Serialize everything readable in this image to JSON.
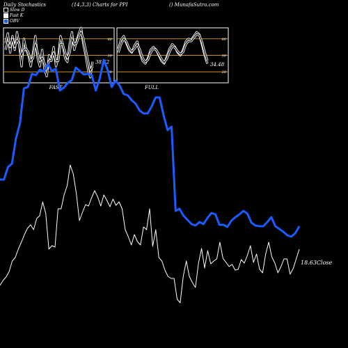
{
  "header": {
    "title": "Daily Stochastics",
    "params": "(14,3,3) Charts for PPI",
    "source": "() MunafaSutra.com"
  },
  "legend": [
    {
      "label": "Slow  D",
      "color": "#000000"
    },
    {
      "label": "Fast  K",
      "color": "#ffffff"
    },
    {
      "label": "OBV",
      "color": "#1a5cff"
    }
  ],
  "colors": {
    "obv": "#1a5cff",
    "price": "#ffffff",
    "band_line": "#c8901e",
    "background": "#000000"
  },
  "chart_data": [
    {
      "type": "line",
      "title": "FAST",
      "ylim": [
        0,
        100
      ],
      "ticks": [
        "80",
        "50",
        "20"
      ],
      "last_value_label": "38.62",
      "series": [
        {
          "values": [
            72,
            90,
            55,
            85,
            60,
            92,
            70,
            30,
            80,
            60,
            50,
            30,
            55,
            85,
            45,
            30,
            60,
            25,
            12,
            50,
            40,
            65,
            30,
            45,
            85,
            70,
            45,
            38,
            70,
            92,
            60,
            75,
            90,
            100,
            70,
            50,
            25,
            10,
            38.62
          ]
        },
        {
          "values": [
            60,
            75,
            65,
            80,
            65,
            78,
            70,
            50,
            60,
            62,
            55,
            40,
            45,
            70,
            55,
            40,
            45,
            35,
            25,
            40,
            40,
            55,
            40,
            40,
            70,
            70,
            55,
            45,
            55,
            80,
            70,
            72,
            85,
            92,
            80,
            60,
            40,
            22,
            30
          ]
        }
      ]
    },
    {
      "type": "line",
      "title": "FULL",
      "ylim": [
        0,
        100
      ],
      "ticks": [
        "80",
        "50",
        "20"
      ],
      "last_value_label": "34.48",
      "series": [
        {
          "values": [
            62,
            78,
            85,
            72,
            60,
            55,
            68,
            75,
            55,
            40,
            35,
            45,
            60,
            65,
            60,
            50,
            40,
            35,
            48,
            62,
            70,
            65,
            55,
            50,
            60,
            75,
            80,
            78,
            85,
            92,
            88,
            70,
            50,
            34.48
          ]
        },
        {
          "values": [
            55,
            70,
            80,
            75,
            63,
            57,
            62,
            70,
            60,
            45,
            38,
            42,
            55,
            62,
            60,
            52,
            43,
            37,
            44,
            57,
            66,
            64,
            57,
            52,
            56,
            70,
            76,
            76,
            82,
            88,
            87,
            74,
            56,
            40
          ]
        }
      ]
    },
    {
      "type": "line",
      "title": "",
      "last_value_label": "18.63",
      "series": [
        {
          "name": "OBV",
          "values": [
            172,
            172,
            190,
            195,
            231,
            253,
            303,
            305,
            324,
            322,
            330,
            327,
            338,
            328,
            331,
            300,
            304,
            311,
            315,
            333,
            328,
            323,
            324,
            322,
            300,
            317,
            344,
            329,
            305,
            314,
            307,
            295,
            293,
            286,
            281,
            271,
            267,
            267,
            277,
            290,
            290,
            264,
            243,
            248,
            127,
            130,
            120,
            114,
            108,
            106,
            111,
            108,
            117,
            124,
            122,
            107,
            107,
            104,
            113,
            118,
            122,
            127,
            123,
            110,
            106,
            105,
            105,
            111,
            118,
            105,
            101,
            97,
            92,
            90,
            95,
            105
          ]
        },
        {
          "name": "Close",
          "values": [
            20,
            27,
            32,
            40,
            55,
            60,
            72,
            82,
            93,
            102,
            107,
            100,
            116,
            120,
            140,
            123,
            72,
            77,
            75,
            130,
            130,
            150,
            163,
            193,
            180,
            152,
            113,
            125,
            136,
            134,
            146,
            156,
            147,
            134,
            150,
            142,
            133,
            144,
            135,
            140,
            130,
            100,
            90,
            78,
            93,
            83,
            78,
            104,
            100,
            130,
            76,
            100,
            60,
            55,
            42,
            33,
            30,
            30,
            0,
            -5,
            33,
            55,
            33,
            24,
            17,
            52,
            73,
            45,
            70,
            51,
            55,
            58,
            82,
            59,
            53,
            47,
            50,
            42,
            43,
            57,
            52,
            63,
            77,
            53,
            65,
            43,
            38,
            65,
            82,
            61,
            52,
            38,
            47,
            58,
            58,
            36,
            44,
            58,
            72
          ]
        }
      ]
    }
  ]
}
